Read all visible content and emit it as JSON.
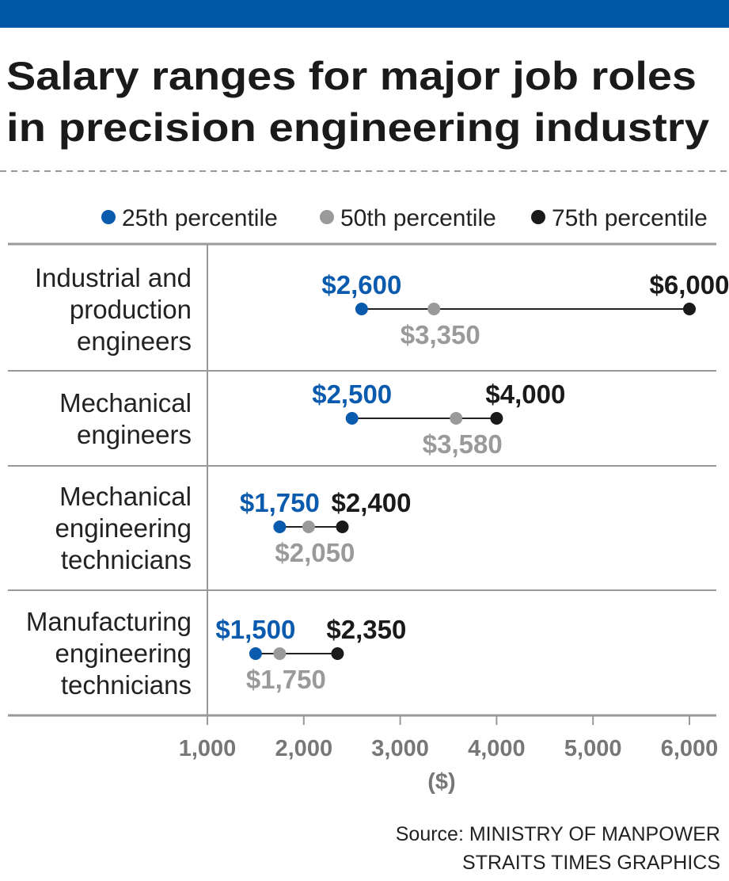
{
  "header": {
    "title_line1": "Salary ranges for major job roles",
    "title_line2": "in precision engineering industry"
  },
  "colors": {
    "banner": "#0057a8",
    "p25": "#0a5aad",
    "p50": "#9a9a9a",
    "p75": "#1a1a1a"
  },
  "chart_data": {
    "type": "dot-range",
    "title": "Salary ranges for major job roles in precision engineering industry",
    "legend": [
      "25th percentile",
      "50th percentile",
      "75th percentile"
    ],
    "legend_position": "top-right",
    "xlabel": "($)",
    "xlim": [
      1000,
      6000
    ],
    "xticks": [
      "1,000",
      "2,000",
      "3,000",
      "4,000",
      "5,000",
      "6,000"
    ],
    "xtick_values": [
      1000,
      2000,
      3000,
      4000,
      5000,
      6000
    ],
    "categories": [
      [
        "Industrial and",
        "production",
        "engineers"
      ],
      [
        "Mechanical",
        "engineers"
      ],
      [
        "Mechanical",
        "engineering",
        "technicians"
      ],
      [
        "Manufacturing",
        "engineering",
        "technicians"
      ]
    ],
    "series": [
      {
        "name": "25th percentile",
        "values": [
          2600,
          2500,
          1750,
          1500
        ],
        "labels": [
          "$2,600",
          "$2,500",
          "$1,750",
          "$1,500"
        ]
      },
      {
        "name": "50th percentile",
        "values": [
          3350,
          3580,
          2050,
          1750
        ],
        "labels": [
          "$3,350",
          "$3,580",
          "$2,050",
          "$1,750"
        ]
      },
      {
        "name": "75th percentile",
        "values": [
          6000,
          4000,
          2400,
          2350
        ],
        "labels": [
          "$6,000",
          "$4,000",
          "$2,400",
          "$2,350"
        ]
      }
    ]
  },
  "footer": {
    "source": "Source: MINISTRY OF MANPOWER",
    "credit": "STRAITS TIMES GRAPHICS"
  }
}
